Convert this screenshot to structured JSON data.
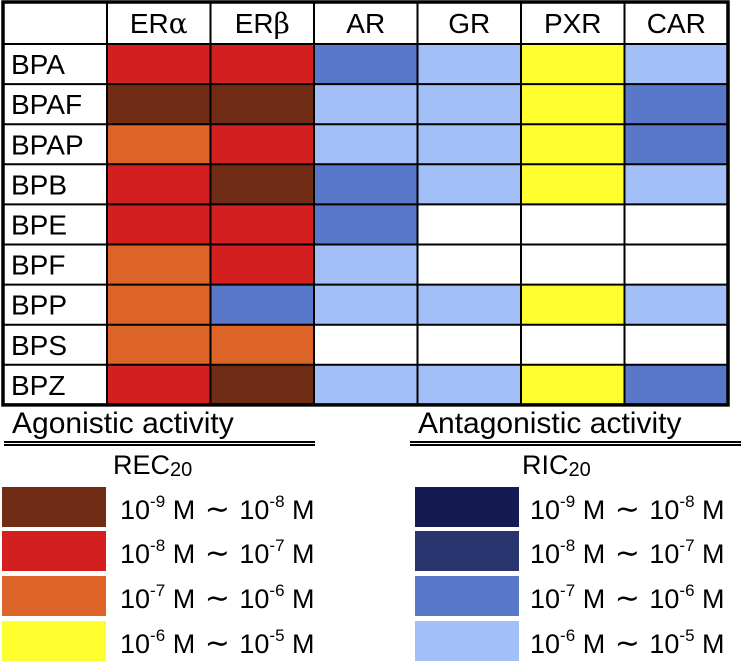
{
  "chart_data": {
    "type": "heatmap",
    "columns": [
      {
        "base": "ER",
        "greek": "α"
      },
      {
        "base": "ER",
        "greek": "β"
      },
      {
        "base": "AR",
        "greek": ""
      },
      {
        "base": "GR",
        "greek": ""
      },
      {
        "base": "PXR",
        "greek": ""
      },
      {
        "base": "CAR",
        "greek": ""
      }
    ],
    "rows": [
      "BPA",
      "BPAF",
      "BPAP",
      "BPB",
      "BPE",
      "BPF",
      "BPP",
      "BPS",
      "BPZ"
    ],
    "cells": [
      [
        "ag_-8_-7",
        "ag_-8_-7",
        "ant_-7_-6",
        "ant_-6_-5",
        "ag_-6_-5",
        "ant_-6_-5"
      ],
      [
        "ag_-9_-8",
        "ag_-9_-8",
        "ant_-6_-5",
        "ant_-6_-5",
        "ag_-6_-5",
        "ant_-7_-6"
      ],
      [
        "ag_-7_-6",
        "ag_-8_-7",
        "ant_-6_-5",
        "ant_-6_-5",
        "ag_-6_-5",
        "ant_-7_-6"
      ],
      [
        "ag_-8_-7",
        "ag_-9_-8",
        "ant_-7_-6",
        "ant_-6_-5",
        "ag_-6_-5",
        "ant_-6_-5"
      ],
      [
        "ag_-8_-7",
        "ag_-8_-7",
        "ant_-7_-6",
        "none",
        "none",
        "none"
      ],
      [
        "ag_-7_-6",
        "ag_-8_-7",
        "ant_-6_-5",
        "none",
        "none",
        "none"
      ],
      [
        "ag_-7_-6",
        "ant_-7_-6",
        "ant_-6_-5",
        "ant_-6_-5",
        "ag_-6_-5",
        "ant_-6_-5"
      ],
      [
        "ag_-7_-6",
        "ag_-7_-6",
        "none",
        "none",
        "none",
        "none"
      ],
      [
        "ag_-8_-7",
        "ag_-9_-8",
        "ant_-6_-5",
        "ant_-6_-5",
        "ag_-6_-5",
        "ant_-7_-6"
      ]
    ],
    "colors": {
      "ag_-9_-8": "#702c14",
      "ag_-8_-7": "#d41f21",
      "ag_-7_-6": "#dc6428",
      "ag_-6_-5": "#ffff30",
      "ant_-9_-8": "#141a52",
      "ant_-8_-7": "#28356e",
      "ant_-7_-6": "#5a78c9",
      "ant_-6_-5": "#a3bff7",
      "none": "#ffffff"
    }
  },
  "legend": {
    "agonistic": {
      "title": "Agonistic activity",
      "measure_base": "REC",
      "measure_sub": "20",
      "ranges": [
        {
          "key": "ag_-9_-8",
          "low_exp": "-9",
          "high_exp": "-8"
        },
        {
          "key": "ag_-8_-7",
          "low_exp": "-8",
          "high_exp": "-7"
        },
        {
          "key": "ag_-7_-6",
          "low_exp": "-7",
          "high_exp": "-6"
        },
        {
          "key": "ag_-6_-5",
          "low_exp": "-6",
          "high_exp": "-5"
        }
      ]
    },
    "antagonistic": {
      "title": "Antagonistic activity",
      "measure_base": "RIC",
      "measure_sub": "20",
      "ranges": [
        {
          "key": "ant_-9_-8",
          "low_exp": "-9",
          "high_exp": "-8"
        },
        {
          "key": "ant_-8_-7",
          "low_exp": "-8",
          "high_exp": "-7"
        },
        {
          "key": "ant_-7_-6",
          "low_exp": "-7",
          "high_exp": "-6"
        },
        {
          "key": "ant_-6_-5",
          "low_exp": "-6",
          "high_exp": "-5"
        }
      ]
    },
    "range_text": {
      "base": "10",
      "unit": "M",
      "tilde": "∼"
    }
  }
}
